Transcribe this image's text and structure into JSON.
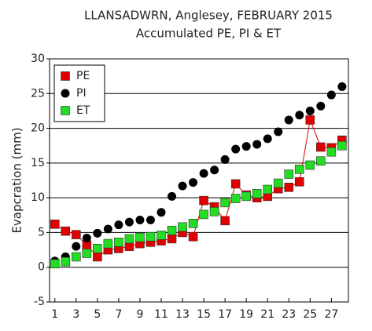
{
  "chart_data": {
    "type": "scatter",
    "title": "LLANSADWRN, Anglesey, FEBRUARY 2015",
    "subtitle": "Accumulated PE,  PI & ET",
    "y_label": "Evapcration (mm)",
    "x": [
      1,
      2,
      3,
      4,
      5,
      6,
      7,
      8,
      9,
      10,
      11,
      12,
      13,
      14,
      15,
      16,
      17,
      18,
      19,
      20,
      21,
      22,
      23,
      24,
      25,
      26,
      27,
      28
    ],
    "series": [
      {
        "name": "PE",
        "color": "#e00000",
        "marker": "square",
        "line": true,
        "values": [
          6.2,
          5.2,
          4.7,
          3.2,
          1.5,
          2.5,
          2.7,
          3.0,
          3.4,
          3.6,
          3.8,
          4.1,
          5.0,
          4.4,
          9.6,
          8.7,
          6.7,
          12.0,
          10.4,
          10.0,
          10.2,
          11.3,
          11.5,
          12.3,
          21.2,
          17.3,
          17.2,
          18.3
        ]
      },
      {
        "name": "PI",
        "color": "#000000",
        "marker": "circle",
        "line": false,
        "values": [
          0.9,
          1.5,
          3.0,
          4.2,
          4.9,
          5.5,
          6.1,
          6.5,
          6.8,
          6.8,
          7.9,
          10.2,
          11.7,
          12.2,
          13.5,
          14.0,
          15.5,
          17.0,
          17.4,
          17.7,
          18.5,
          19.5,
          21.2,
          21.9,
          22.5,
          23.2,
          24.8,
          26.0
        ]
      },
      {
        "name": "ET",
        "color": "#22dd22",
        "marker": "square",
        "line": false,
        "values": [
          0.5,
          0.8,
          1.5,
          2.0,
          2.7,
          3.4,
          3.6,
          4.1,
          4.3,
          4.4,
          4.6,
          5.3,
          5.8,
          6.3,
          7.6,
          8.0,
          9.3,
          9.9,
          10.2,
          10.6,
          11.2,
          12.1,
          13.4,
          14.1,
          14.7,
          15.3,
          16.6,
          17.5
        ]
      }
    ],
    "xlim": [
      0.5,
      28.6
    ],
    "xticks": [
      1,
      3,
      5,
      7,
      9,
      11,
      13,
      15,
      17,
      19,
      21,
      23,
      25,
      27
    ],
    "ylim": [
      -5,
      30
    ],
    "yticks": [
      -5,
      0,
      5,
      10,
      15,
      20,
      25,
      30
    ],
    "grid": true,
    "legend": "top-left"
  }
}
